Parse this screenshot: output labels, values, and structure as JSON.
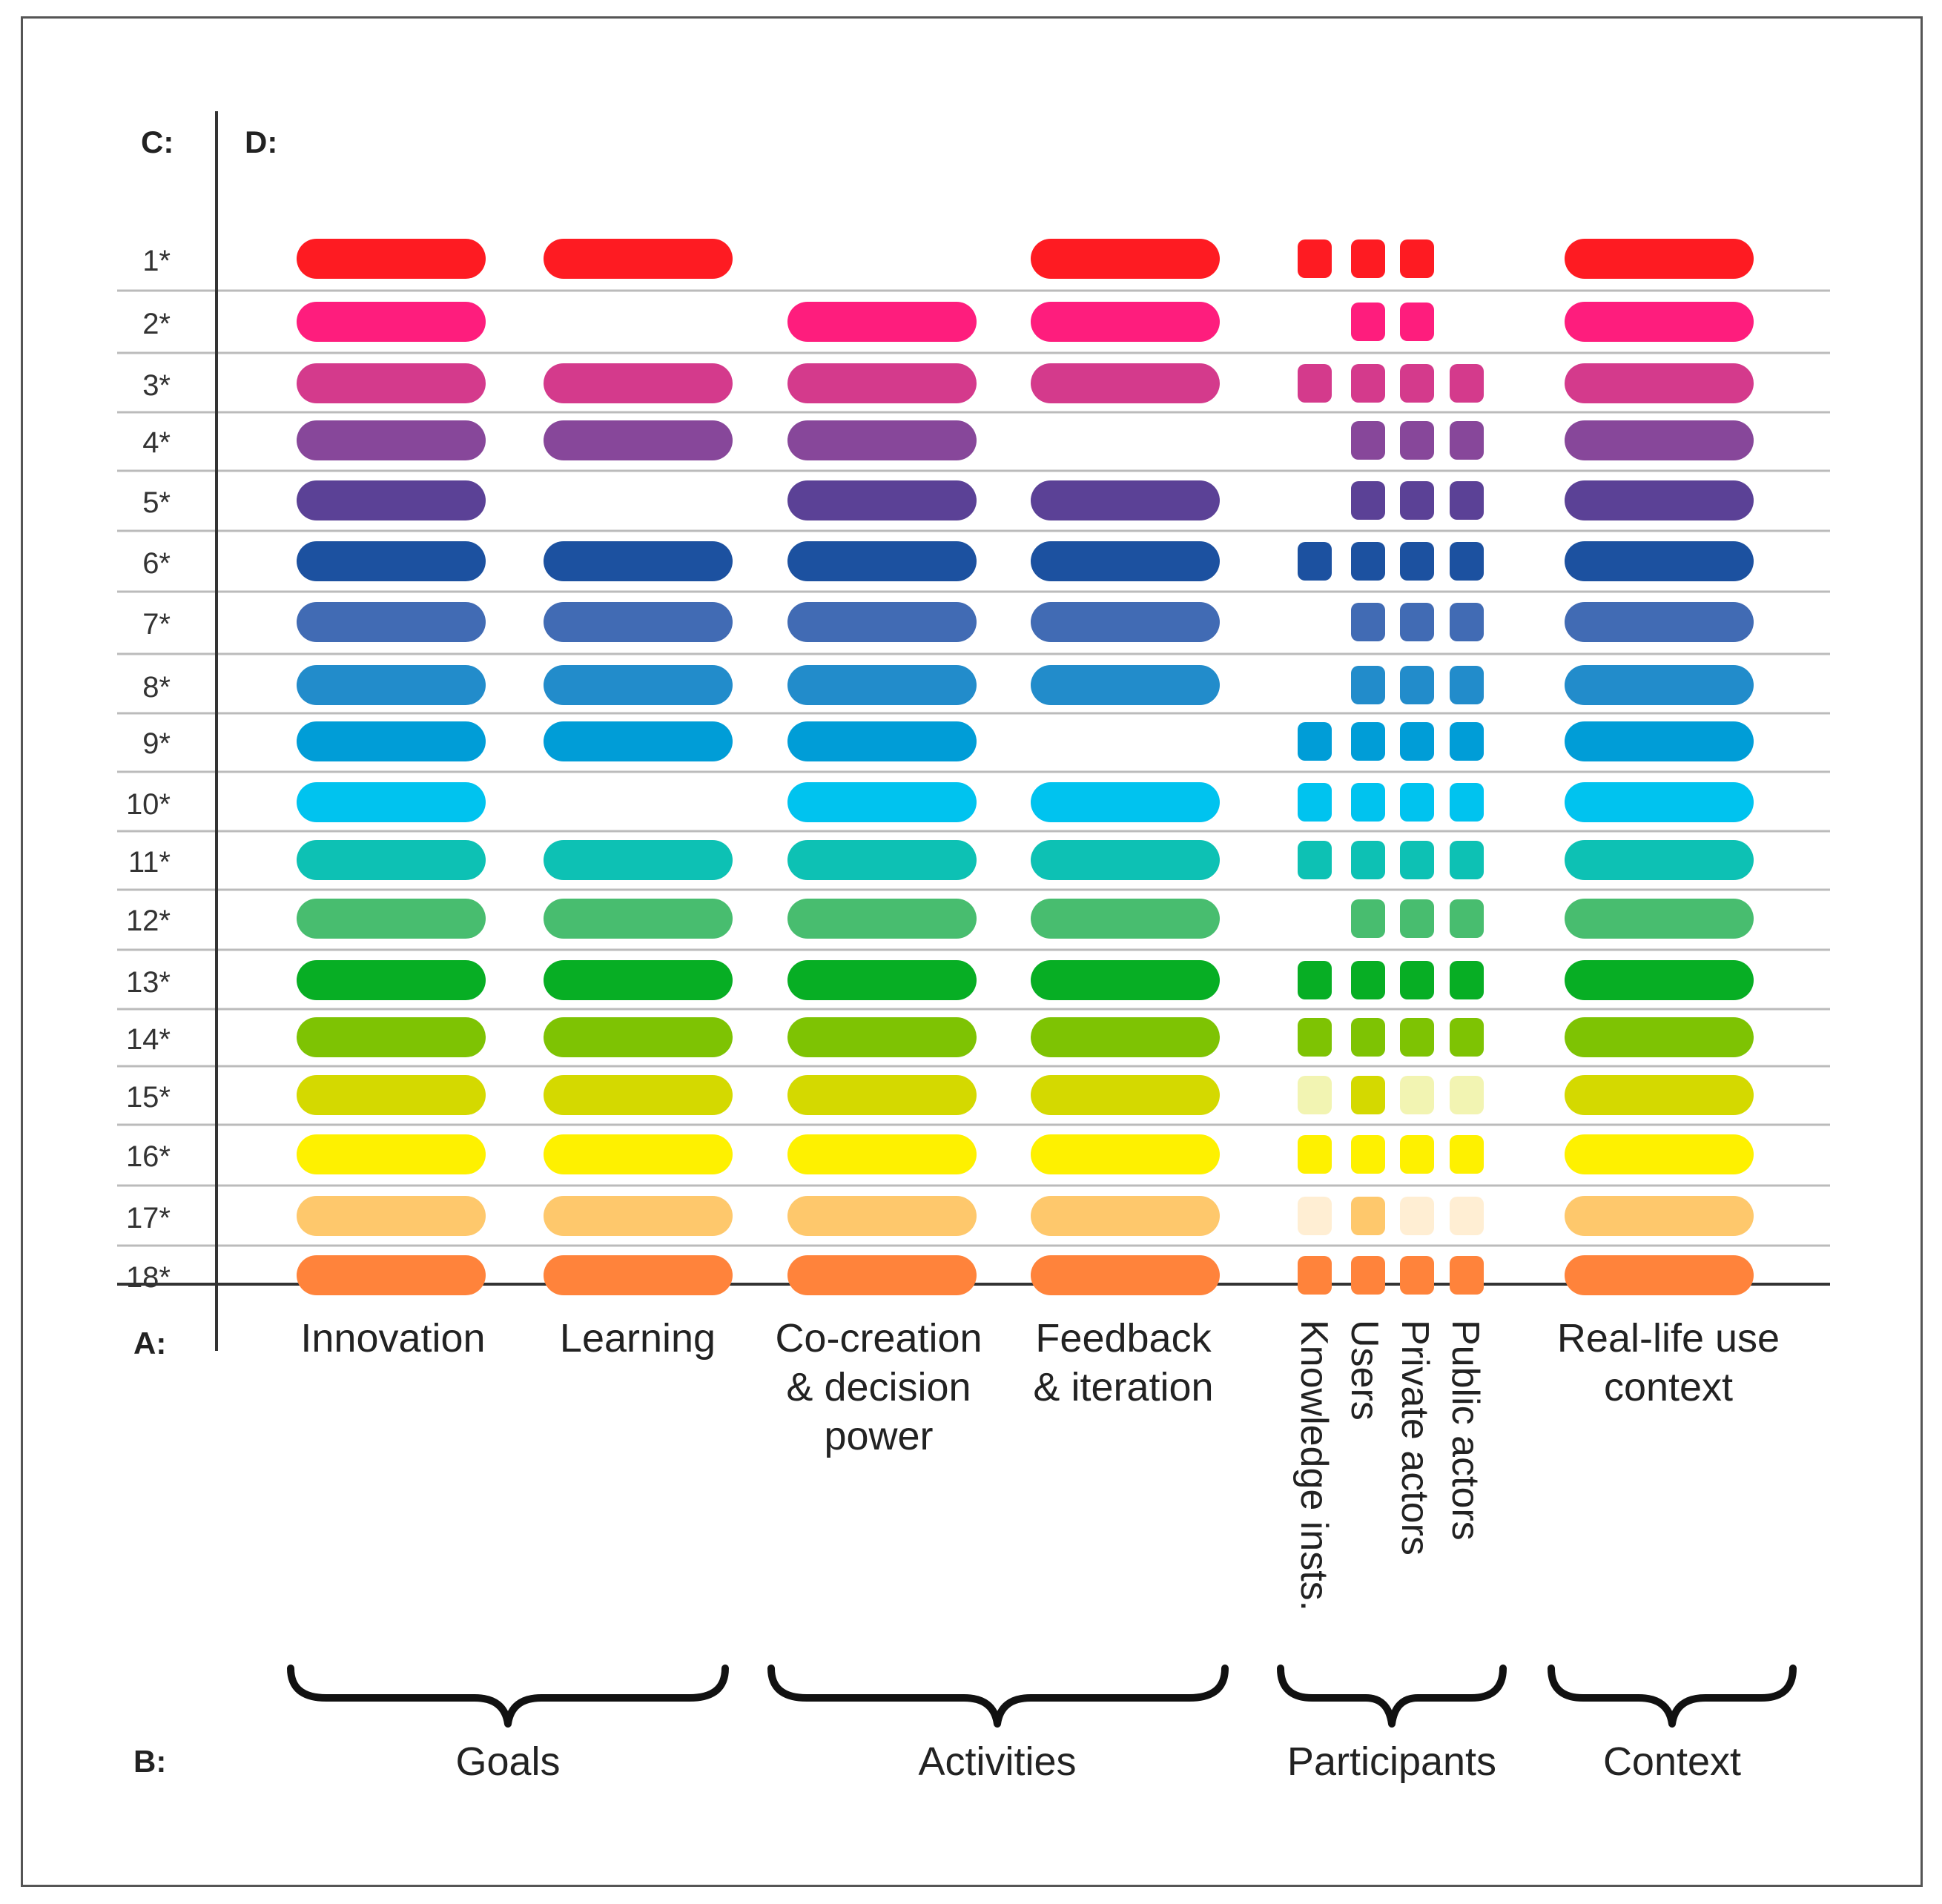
{
  "axis_labels": {
    "c": "C:",
    "d": "D:",
    "a": "A:",
    "b": "B:"
  },
  "rows": [
    "1*",
    "2*",
    "3*",
    "4*",
    "5*",
    "6*",
    "7*",
    "8*",
    "9*",
    "10*",
    "11*",
    "12*",
    "13*",
    "14*",
    "15*",
    "16*",
    "17*",
    "18*"
  ],
  "row_colors": [
    "#fe1b22",
    "#fe1d7d",
    "#d43a8c",
    "#87479a",
    "#5b4196",
    "#1c51a0",
    "#416bb4",
    "#228ccb",
    "#009dd7",
    "#00c3ef",
    "#0dc1b4",
    "#48bd6f",
    "#07ae24",
    "#7ec303",
    "#d4d900",
    "#fef100",
    "#fec86c",
    "#ff833b"
  ],
  "columns": [
    {
      "label_lines": [
        "Innovation"
      ]
    },
    {
      "label_lines": [
        "Learning"
      ]
    },
    {
      "label_lines": [
        "Co-creation",
        "& decision",
        "power"
      ]
    },
    {
      "label_lines": [
        "Feedback",
        "& iteration"
      ]
    },
    {
      "label_lines": [
        "Real-life use",
        "context"
      ]
    }
  ],
  "participant_columns": [
    "Knowledge insts.",
    "Users",
    "Private actors",
    "Public actors"
  ],
  "groups": [
    "Goals",
    "Activities",
    "Participants",
    "Context"
  ],
  "matrix": [
    [
      1,
      1,
      0,
      1,
      1
    ],
    [
      1,
      0,
      1,
      1,
      1
    ],
    [
      1,
      1,
      1,
      1,
      1
    ],
    [
      1,
      1,
      1,
      0,
      1
    ],
    [
      1,
      0,
      1,
      1,
      1
    ],
    [
      1,
      1,
      1,
      1,
      1
    ],
    [
      1,
      1,
      1,
      1,
      1
    ],
    [
      1,
      1,
      1,
      1,
      1
    ],
    [
      1,
      1,
      1,
      0,
      1
    ],
    [
      1,
      0,
      1,
      1,
      1
    ],
    [
      1,
      1,
      1,
      1,
      1
    ],
    [
      1,
      1,
      1,
      1,
      1
    ],
    [
      1,
      1,
      1,
      1,
      1
    ],
    [
      1,
      1,
      1,
      1,
      1
    ],
    [
      1,
      1,
      1,
      1,
      1
    ],
    [
      1,
      1,
      1,
      1,
      1
    ],
    [
      1,
      1,
      1,
      1,
      1
    ],
    [
      1,
      1,
      1,
      1,
      1
    ]
  ],
  "participants": [
    [
      1,
      1,
      1,
      0
    ],
    [
      0,
      1,
      1,
      0
    ],
    [
      1,
      1,
      1,
      1
    ],
    [
      0,
      1,
      1,
      1
    ],
    [
      0,
      1,
      1,
      1
    ],
    [
      1,
      1,
      1,
      1
    ],
    [
      0,
      1,
      1,
      1
    ],
    [
      0,
      1,
      1,
      1
    ],
    [
      1,
      1,
      1,
      1
    ],
    [
      1,
      1,
      1,
      1
    ],
    [
      1,
      1,
      1,
      1
    ],
    [
      0,
      1,
      1,
      1
    ],
    [
      1,
      1,
      1,
      1
    ],
    [
      1,
      1,
      1,
      1
    ],
    [
      0.3,
      1,
      0.3,
      0.3
    ],
    [
      1,
      1,
      1,
      1
    ],
    [
      0.3,
      1,
      0.3,
      0.3
    ],
    [
      1,
      1,
      1,
      1
    ]
  ]
}
